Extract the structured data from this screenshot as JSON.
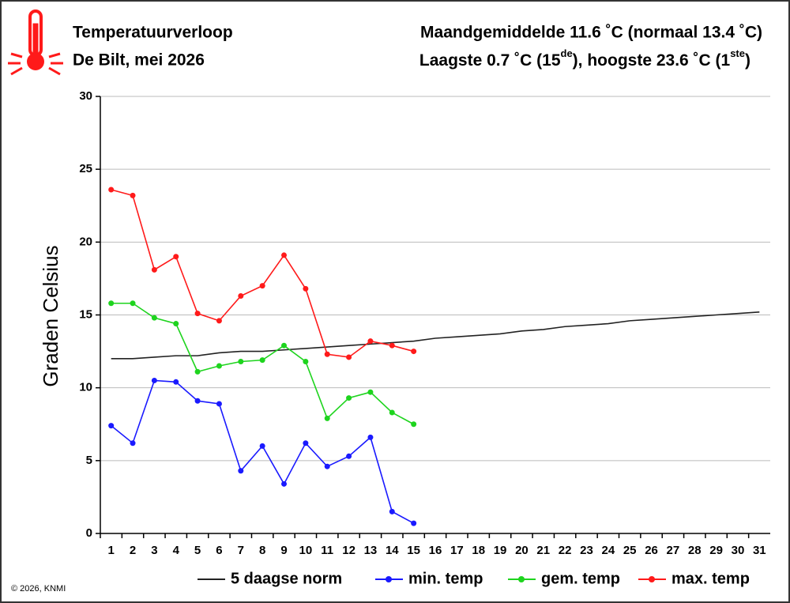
{
  "chart_data": {
    "type": "line",
    "title": "Temperatuurverloop",
    "subtitle": "De Bilt, mei 2026",
    "summary_1": "Maandgemiddelde 11.6 ˚C (normaal 13.4 ˚C)",
    "summary_2": [
      "Laagste 0.7 ˚C (15",
      "de",
      "), hoogste 23.6 ˚C (1",
      "ste",
      ")"
    ],
    "y_label": "Graden Celsius",
    "credit": "© 2026, KNMI",
    "categories": [
      1,
      2,
      3,
      4,
      5,
      6,
      7,
      8,
      9,
      10,
      11,
      12,
      13,
      14,
      15,
      16,
      17,
      18,
      19,
      20,
      21,
      22,
      23,
      24,
      25,
      26,
      27,
      28,
      29,
      30,
      31
    ],
    "series": [
      {
        "name": "5 daagse norm",
        "color": "#222222",
        "markers": false,
        "values": [
          12.0,
          12.0,
          12.1,
          12.2,
          12.2,
          12.4,
          12.5,
          12.5,
          12.6,
          12.7,
          12.8,
          12.9,
          13.0,
          13.1,
          13.2,
          13.4,
          13.5,
          13.6,
          13.7,
          13.9,
          14.0,
          14.2,
          14.3,
          14.4,
          14.6,
          14.7,
          14.8,
          14.9,
          15.0,
          15.1,
          15.2
        ]
      },
      {
        "name": "min. temp",
        "color": "#1a1aff",
        "markers": true,
        "values": [
          7.4,
          6.2,
          10.5,
          10.4,
          9.1,
          8.9,
          4.3,
          6.0,
          3.4,
          6.2,
          4.6,
          5.3,
          6.6,
          1.5,
          0.7,
          null,
          null,
          null,
          null,
          null,
          null,
          null,
          null,
          null,
          null,
          null,
          null,
          null,
          null,
          null,
          null
        ]
      },
      {
        "name": "gem. temp",
        "color": "#1ed41e",
        "markers": true,
        "values": [
          15.8,
          15.8,
          14.8,
          14.4,
          11.1,
          11.5,
          11.8,
          11.9,
          12.9,
          11.8,
          7.9,
          9.3,
          9.7,
          8.3,
          7.5,
          null,
          null,
          null,
          null,
          null,
          null,
          null,
          null,
          null,
          null,
          null,
          null,
          null,
          null,
          null,
          null
        ]
      },
      {
        "name": "max. temp",
        "color": "#ff1a1a",
        "markers": true,
        "values": [
          23.6,
          23.2,
          18.1,
          19.0,
          15.1,
          14.6,
          16.3,
          17.0,
          19.1,
          16.8,
          12.3,
          12.1,
          13.2,
          12.9,
          12.5,
          null,
          null,
          null,
          null,
          null,
          null,
          null,
          null,
          null,
          null,
          null,
          null,
          null,
          null,
          null,
          null
        ]
      }
    ],
    "ylim": [
      0,
      30
    ],
    "yticks": [
      0,
      5,
      10,
      15,
      20,
      25,
      30
    ],
    "grid": true
  }
}
